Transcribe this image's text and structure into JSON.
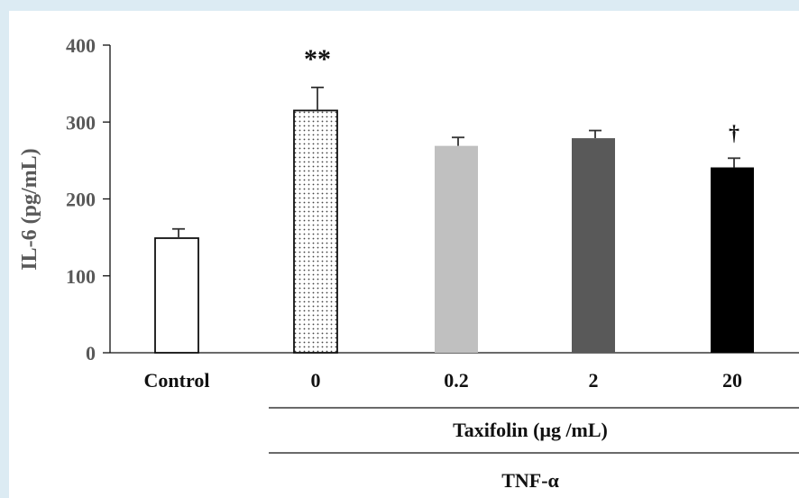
{
  "chart_data": {
    "type": "bar",
    "title": "",
    "xlabel": "",
    "ylabel": "IL-6 (pg/mL)",
    "ylim": [
      0,
      400
    ],
    "yticks": [
      0,
      100,
      200,
      300,
      400
    ],
    "grid": false,
    "categories": [
      "Control",
      "0",
      "0.2",
      "2",
      "20"
    ],
    "values": [
      149,
      315,
      269,
      279,
      241
    ],
    "errors": [
      12,
      30,
      11,
      10,
      12
    ],
    "annotations": [
      "",
      "**",
      "",
      "",
      "†"
    ],
    "bar_styles": [
      "white",
      "dotted",
      "#c0c0c0",
      "#595959",
      "#000000"
    ],
    "group_labels": {
      "taxifolin": "Taxifolin (μg /mL)",
      "tnf": "TNF-α"
    }
  }
}
